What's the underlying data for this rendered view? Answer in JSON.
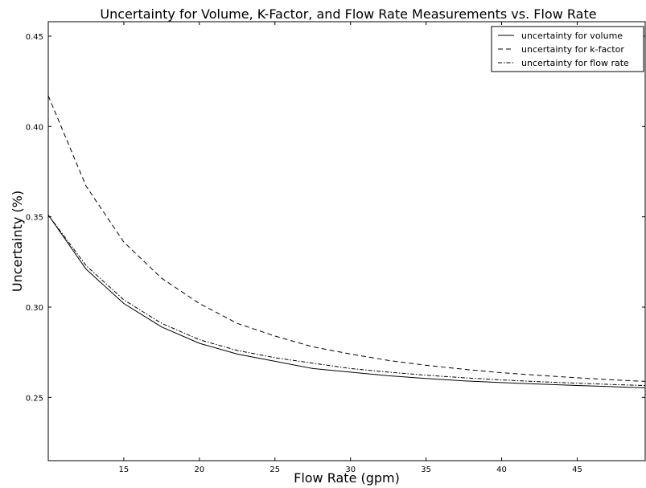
{
  "chart_data": {
    "type": "line",
    "title": "Uncertainty for Volume, K-Factor, and Flow Rate Measurements vs. Flow Rate",
    "xlabel": "Flow Rate (gpm)",
    "ylabel": "Uncertainty (%)",
    "xlim": [
      10,
      49.5
    ],
    "ylim": [
      0.215,
      0.458
    ],
    "x_ticks": [
      15,
      20,
      25,
      30,
      35,
      40,
      45
    ],
    "y_ticks": [
      0.25,
      0.3,
      0.35,
      0.4,
      0.45
    ],
    "x_tick_labels": [
      "15",
      "20",
      "25",
      "30",
      "35",
      "40",
      "45"
    ],
    "y_tick_labels": [
      "0.25",
      "0.30",
      "0.35",
      "0.40",
      "0.45"
    ],
    "grid": false,
    "legend_position": "top-right",
    "x": [
      10,
      12.5,
      15,
      17.5,
      20,
      22.5,
      25,
      27.5,
      30,
      32.5,
      35,
      37.5,
      40,
      42.5,
      45,
      47.5,
      49.5
    ],
    "series": [
      {
        "name": "uncertainty for volume",
        "style": "solid",
        "color": "#000000",
        "values": [
          0.351,
          0.321,
          0.302,
          0.289,
          0.28,
          0.274,
          0.27,
          0.266,
          0.264,
          0.262,
          0.2605,
          0.2592,
          0.2582,
          0.2574,
          0.2566,
          0.2559,
          0.2553
        ]
      },
      {
        "name": "uncertainty for k-factor",
        "style": "dashed",
        "color": "#000000",
        "values": [
          0.417,
          0.367,
          0.336,
          0.316,
          0.302,
          0.291,
          0.284,
          0.278,
          0.274,
          0.2705,
          0.2678,
          0.2656,
          0.2637,
          0.2622,
          0.2609,
          0.2597,
          0.2589
        ]
      },
      {
        "name": "uncertainty for flow rate",
        "style": "dashdot",
        "color": "#000000",
        "values": [
          0.351,
          0.323,
          0.304,
          0.291,
          0.282,
          0.276,
          0.272,
          0.269,
          0.266,
          0.264,
          0.2623,
          0.2609,
          0.2597,
          0.2587,
          0.2579,
          0.2571,
          0.2566
        ]
      }
    ]
  }
}
